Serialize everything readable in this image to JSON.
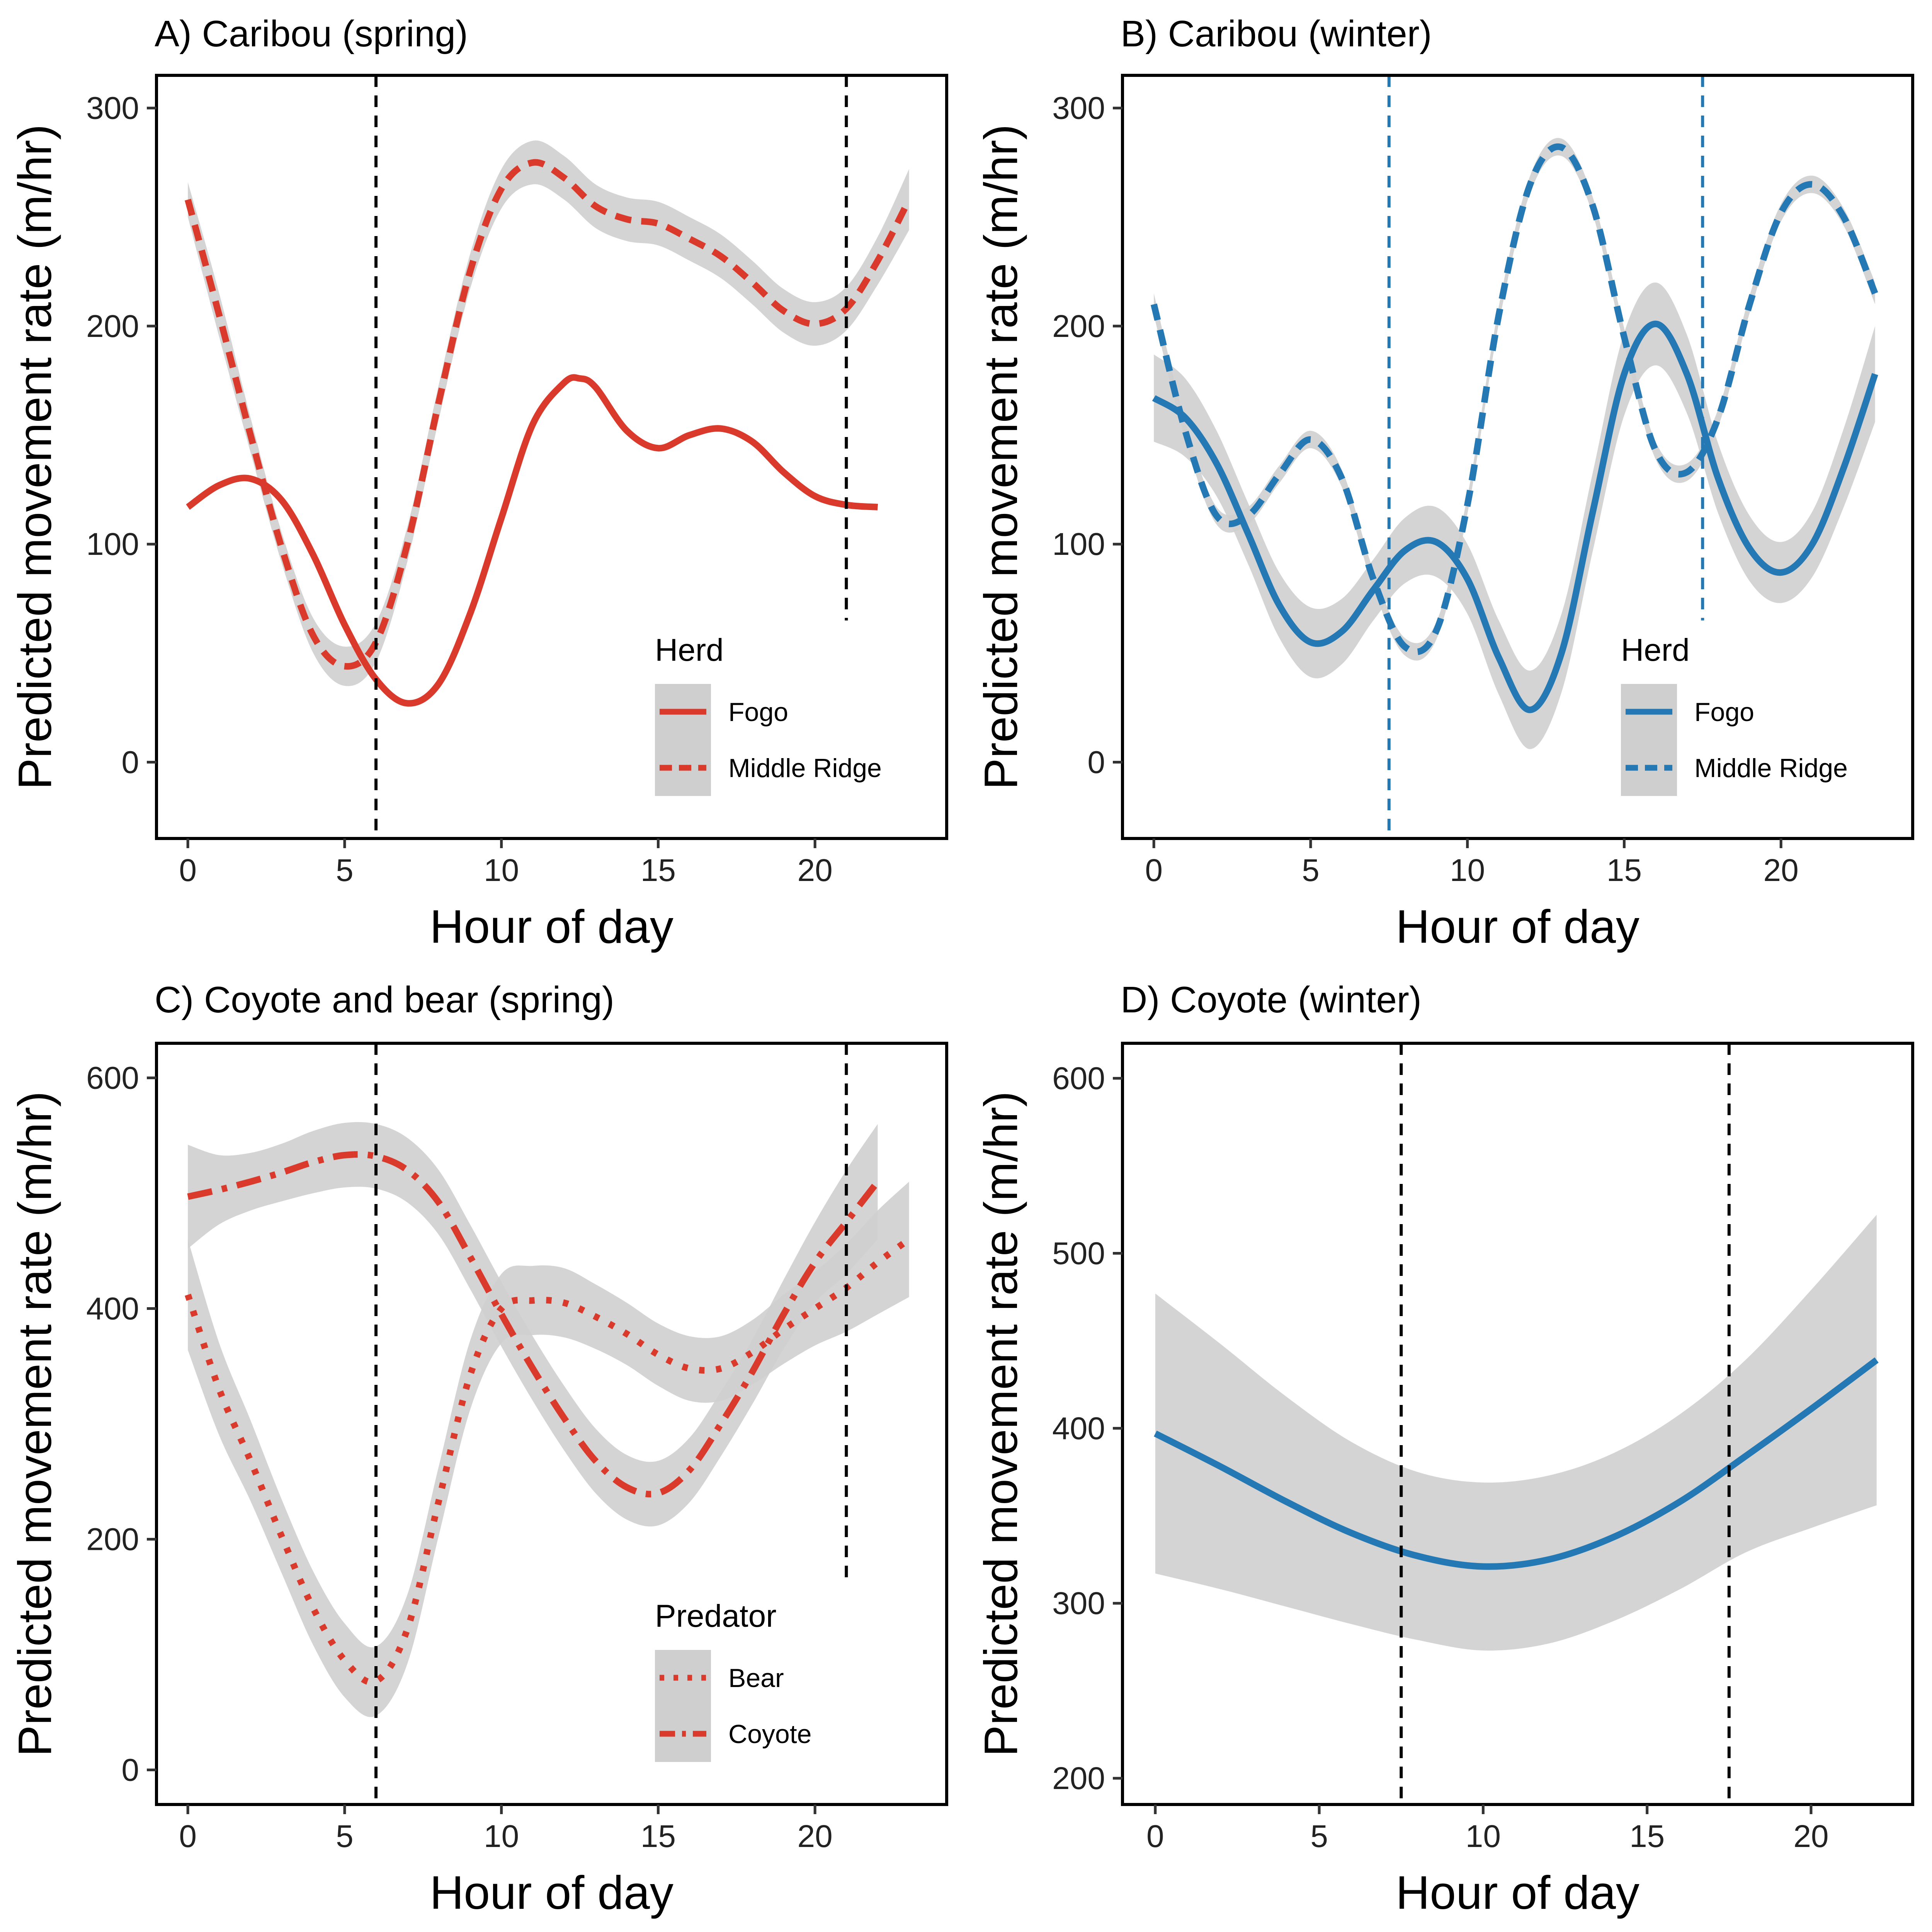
{
  "colors": {
    "red": "#d93a2b",
    "blue": "#2479b4",
    "band": "#cfcfcf",
    "black": "#000000"
  },
  "chart_data": [
    {
      "id": "A",
      "type": "line",
      "title": "A) Caribou (spring)",
      "xlabel": "Hour of day",
      "ylabel": "Predicted movement rate (m/hr)",
      "xlim": [
        -1,
        24.2
      ],
      "ylim": [
        -35,
        315
      ],
      "xticks": [
        0,
        5,
        10,
        15,
        20
      ],
      "yticks": [
        0,
        100,
        200,
        300
      ],
      "grid": false,
      "vlines": [
        {
          "x": 6,
          "y_from": -35,
          "y_to": 315
        },
        {
          "x": 21,
          "y_from": 65,
          "y_to": 315
        }
      ],
      "vline_color": "#000000",
      "legend": {
        "title": "Herd",
        "position": "bottom-right"
      },
      "series": [
        {
          "name": "Fogo",
          "style": "solid",
          "color": "#d93a2b",
          "x": [
            0,
            1,
            2,
            3,
            4,
            5,
            6,
            7,
            8,
            9,
            10,
            11,
            12,
            12.5,
            13,
            14,
            15,
            16,
            17,
            18,
            19,
            20,
            21,
            22
          ],
          "y": [
            117,
            127,
            130,
            120,
            95,
            63,
            38,
            27,
            36,
            68,
            112,
            155,
            174,
            176,
            172,
            152,
            144,
            150,
            153,
            147,
            133,
            122,
            118,
            117
          ],
          "band": null
        },
        {
          "name": "Middle Ridge",
          "style": "dashed",
          "color": "#d93a2b",
          "x": [
            0,
            1,
            2,
            3,
            4,
            5,
            6,
            7,
            8,
            9,
            10,
            11,
            12,
            13,
            14,
            15,
            16,
            17,
            18,
            19,
            20,
            21,
            22,
            23
          ],
          "y": [
            258,
            205,
            150,
            98,
            58,
            44,
            55,
            100,
            165,
            225,
            263,
            275,
            268,
            255,
            249,
            247,
            240,
            232,
            220,
            207,
            201,
            208,
            230,
            258
          ],
          "band": [
            8,
            10,
            8,
            7,
            8,
            9,
            9,
            8,
            8,
            8,
            9,
            10,
            10,
            10,
            10,
            10,
            10,
            10,
            10,
            10,
            10,
            10,
            11,
            14
          ]
        }
      ]
    },
    {
      "id": "B",
      "type": "line",
      "title": "B) Caribou (winter)",
      "xlabel": "Hour of day",
      "ylabel": "Predicted movement rate (m/hr)",
      "xlim": [
        -1,
        24.2
      ],
      "ylim": [
        -35,
        315
      ],
      "xticks": [
        0,
        5,
        10,
        15,
        20
      ],
      "yticks": [
        0,
        100,
        200,
        300
      ],
      "grid": false,
      "vlines": [
        {
          "x": 7.5,
          "y_from": -35,
          "y_to": 315
        },
        {
          "x": 17.5,
          "y_from": 65,
          "y_to": 315
        }
      ],
      "vline_color": "#2479b4",
      "legend": {
        "title": "Herd",
        "position": "bottom-right"
      },
      "series": [
        {
          "name": "Fogo",
          "style": "solid",
          "color": "#2479b4",
          "x": [
            0,
            1,
            2,
            3,
            4,
            5,
            6,
            7,
            8,
            9,
            10,
            11,
            12,
            13,
            14,
            15,
            16,
            17,
            18,
            19,
            20,
            21,
            22,
            23
          ],
          "y": [
            167,
            158,
            137,
            105,
            72,
            55,
            60,
            79,
            97,
            101,
            84,
            48,
            24,
            50,
            115,
            178,
            201,
            178,
            130,
            98,
            87,
            100,
            135,
            178
          ],
          "band": [
            20,
            18,
            15,
            14,
            15,
            16,
            15,
            14,
            15,
            16,
            16,
            17,
            18,
            18,
            18,
            19,
            19,
            18,
            16,
            15,
            14,
            15,
            18,
            22
          ]
        },
        {
          "name": "Middle Ridge",
          "style": "dashed",
          "color": "#2479b4",
          "x": [
            0,
            1,
            2,
            3,
            4,
            5,
            6,
            7,
            8,
            9,
            10,
            11,
            12,
            13,
            14,
            15,
            16,
            17,
            18,
            19,
            20,
            21,
            22,
            23
          ],
          "y": [
            210,
            152,
            113,
            113,
            132,
            148,
            130,
            84,
            53,
            60,
            118,
            205,
            265,
            282,
            255,
            195,
            143,
            133,
            158,
            210,
            252,
            265,
            250,
            215
          ],
          "band": [
            5,
            4,
            4,
            4,
            4,
            4,
            4,
            4,
            4,
            4,
            4,
            4,
            4,
            4,
            4,
            4,
            4,
            4,
            4,
            4,
            4,
            4,
            4,
            5
          ]
        }
      ]
    },
    {
      "id": "C",
      "type": "line",
      "title": "C) Coyote and bear (spring)",
      "xlabel": "Hour of day",
      "ylabel": "Predicted movement rate (m/hr)",
      "xlim": [
        -1,
        24.2
      ],
      "ylim": [
        -30,
        630
      ],
      "xticks": [
        0,
        5,
        10,
        15,
        20
      ],
      "yticks": [
        0,
        200,
        400,
        600
      ],
      "grid": false,
      "vlines": [
        {
          "x": 6,
          "y_from": -30,
          "y_to": 630
        },
        {
          "x": 21,
          "y_from": 160,
          "y_to": 630
        }
      ],
      "vline_color": "#000000",
      "legend": {
        "title": "Predator",
        "position": "bottom-right"
      },
      "series": [
        {
          "name": "Bear",
          "style": "dotted",
          "color": "#d93a2b",
          "x": [
            0,
            1,
            2,
            3,
            4,
            5,
            6,
            7,
            8,
            9,
            10,
            11,
            12,
            13,
            14,
            15,
            16,
            17,
            18,
            19,
            20,
            21,
            22,
            23
          ],
          "y": [
            412,
            330,
            268,
            202,
            140,
            95,
            77,
            122,
            233,
            342,
            400,
            407,
            405,
            393,
            378,
            360,
            348,
            348,
            362,
            382,
            400,
            418,
            440,
            460
          ],
          "band": [
            48,
            40,
            35,
            32,
            32,
            32,
            30,
            30,
            30,
            30,
            30,
            30,
            30,
            28,
            27,
            27,
            28,
            28,
            28,
            30,
            32,
            38,
            45,
            50
          ]
        },
        {
          "name": "Coyote",
          "style": "dashdot",
          "color": "#d93a2b",
          "x": [
            0,
            1,
            2,
            3,
            4,
            5,
            6,
            7,
            8,
            9,
            10,
            11,
            12,
            13,
            14,
            15,
            16,
            17,
            18,
            19,
            20,
            21,
            22
          ],
          "y": [
            497,
            503,
            510,
            518,
            527,
            533,
            532,
            520,
            492,
            445,
            395,
            348,
            305,
            268,
            245,
            240,
            260,
            300,
            345,
            395,
            440,
            475,
            510
          ],
          "band": [
            45,
            30,
            25,
            25,
            27,
            28,
            28,
            28,
            28,
            28,
            28,
            28,
            28,
            28,
            28,
            28,
            28,
            28,
            28,
            30,
            35,
            45,
            50
          ]
        }
      ]
    },
    {
      "id": "D",
      "type": "line",
      "title": "D) Coyote (winter)",
      "xlabel": "Hour of day",
      "ylabel": "Predicted movement rate (m/hr)",
      "xlim": [
        -1,
        23.1
      ],
      "ylim": [
        185,
        620
      ],
      "xticks": [
        0,
        5,
        10,
        15,
        20
      ],
      "yticks": [
        200,
        300,
        400,
        500,
        600
      ],
      "grid": false,
      "vlines": [
        {
          "x": 7.5,
          "y_from": 185,
          "y_to": 620
        },
        {
          "x": 17.5,
          "y_from": 185,
          "y_to": 620
        }
      ],
      "vline_color": "#000000",
      "legend": null,
      "series": [
        {
          "name": "",
          "style": "solid",
          "color": "#2479b4",
          "x": [
            0,
            2,
            4,
            6,
            8,
            10,
            12,
            14,
            16,
            18,
            20,
            22
          ],
          "y": [
            397,
            378,
            358,
            340,
            327,
            321,
            325,
            338,
            358,
            384,
            411,
            439
          ],
          "band": [
            80,
            70,
            60,
            52,
            48,
            48,
            48,
            48,
            50,
            55,
            68,
            83
          ]
        }
      ]
    }
  ]
}
